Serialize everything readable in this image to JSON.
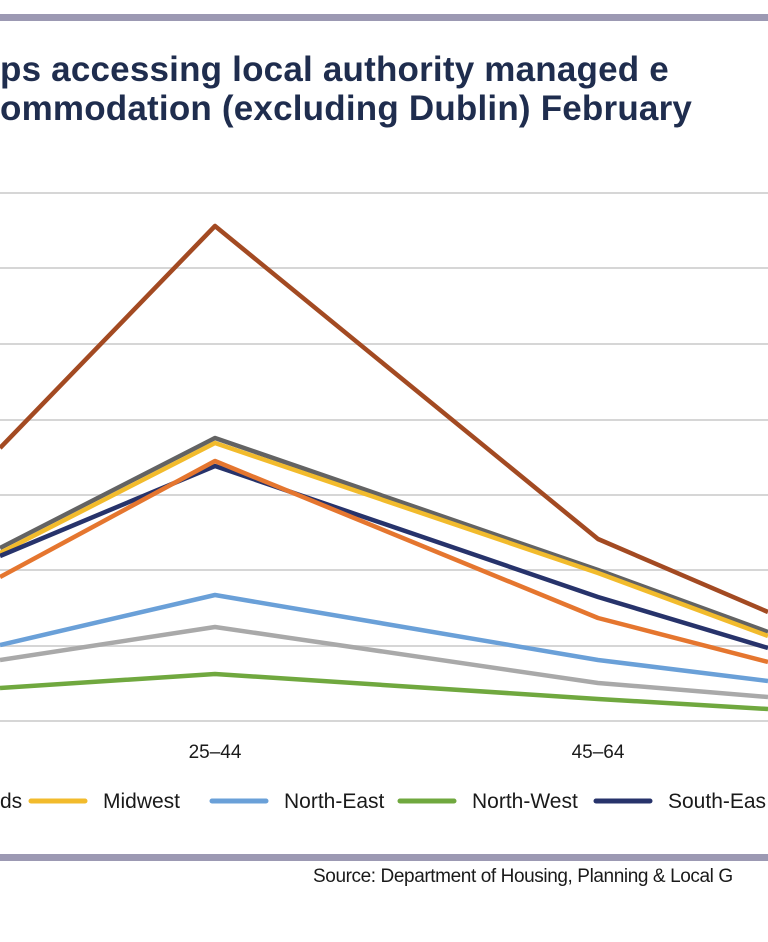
{
  "title_lines": [
    "ps accessing local authority managed e",
    "ommodation (excluding Dublin) February"
  ],
  "source": "Source: Department of Housing, Planning & Local G",
  "chart_data": {
    "type": "line",
    "categories": [
      "25–44",
      "45–64"
    ],
    "legend": [
      {
        "label": "ds",
        "color": "#f2bb2c"
      },
      {
        "label": "Midwest",
        "color": "#6aa0d8"
      },
      {
        "label": "North-East",
        "color": "#70a83f"
      },
      {
        "label": "North-West",
        "color": "#27336b"
      },
      {
        "label": "South-Eas",
        "color": null
      }
    ],
    "series": [
      {
        "color": "#a34a22",
        "values": [
          226,
          539
        ]
      },
      {
        "color": "#636363",
        "values": [
          438,
          570
        ]
      },
      {
        "color": "#f2bb2c",
        "values": [
          443,
          573
        ]
      },
      {
        "color": "#27336b",
        "values": [
          466,
          597
        ]
      },
      {
        "color": "#e5762f",
        "values": [
          461,
          618
        ]
      },
      {
        "color": "#6aa0d8",
        "values": [
          595,
          660
        ]
      },
      {
        "color": "#a9a9a9",
        "values": [
          627,
          683
        ]
      },
      {
        "color": "#70a83f",
        "values": [
          674,
          699
        ]
      }
    ],
    "left_edge_values": {
      "#a34a22": 448,
      "#636363": 548,
      "#f2bb2c": 553,
      "#27336b": 556,
      "#e5762f": 577,
      "#6aa0d8": 645,
      "#a9a9a9": 660,
      "#70a83f": 688
    },
    "right_edge_values": {
      "#a34a22": 612,
      "#636363": 632,
      "#f2bb2c": 636,
      "#27336b": 648,
      "#e5762f": 662,
      "#6aa0d8": 681,
      "#a9a9a9": 697,
      "#70a83f": 709
    },
    "grid": true
  }
}
